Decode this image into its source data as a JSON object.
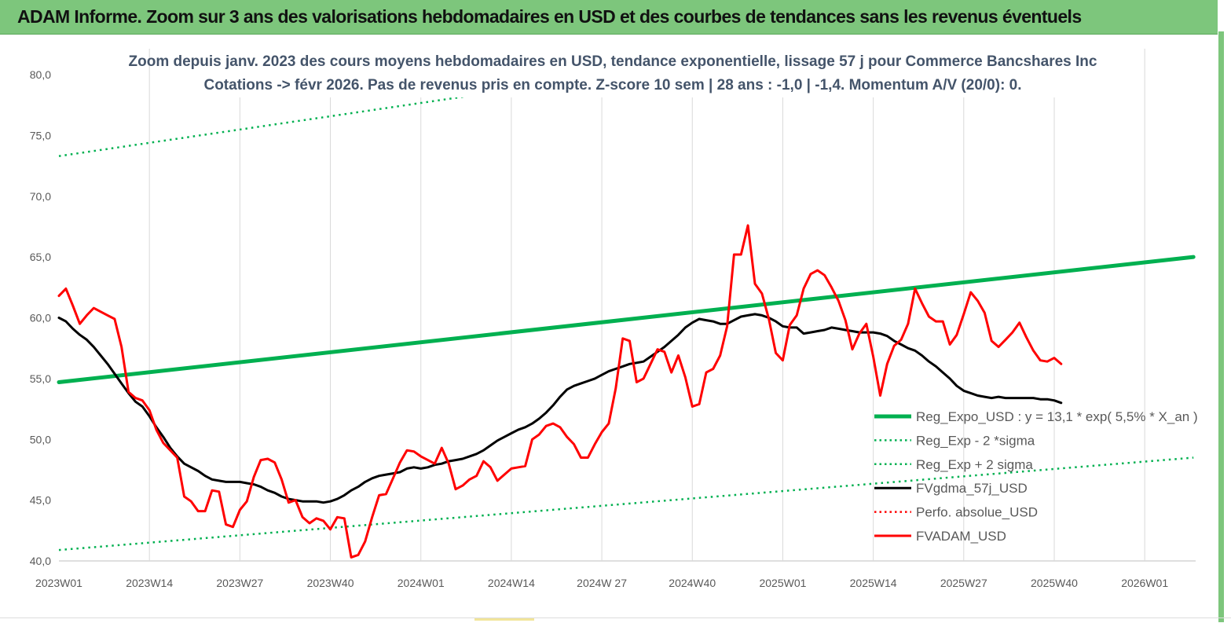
{
  "header": {
    "title": "ADAM Informe. Zoom sur 3 ans des valorisations hebdomadaires en USD et des courbes de tendances sans les revenus éventuels"
  },
  "colors": {
    "header_bg": "#7dc67c",
    "trend": "#00b050",
    "price": "#ff0000",
    "smooth": "#000000",
    "gridline": "#d9d9d9"
  },
  "chart_data": {
    "type": "line",
    "title": "Zoom depuis janv. 2023 des cours moyens hebdomadaires en USD, tendance exponentielle, lissage 57 j pour Commerce Bancshares Inc",
    "subtitle": "Cotations -> févr 2026.  Pas de revenus pris en compte. Z-score 10 sem  | 28 ans : -1,0 | -1,4. Momentum A/V (20/0): 0.",
    "ylim": [
      40,
      80
    ],
    "y_ticks": [
      "40,0",
      "45,0",
      "50,0",
      "55,0",
      "60,0",
      "65,0",
      "70,0",
      "75,0",
      "80,0"
    ],
    "x_ticks": [
      "2023W01",
      "2023W14",
      "2023W27",
      "2023W40",
      "2024W01",
      "2024W14",
      "2024W 27",
      "2024W40",
      "2025W01",
      "2025W14",
      "2025W27",
      "2025W40",
      "2026W01"
    ],
    "grid": "vertical",
    "legend_position": "right",
    "legend": [
      {
        "label": "Reg_Expo_USD : y = 13,1  * exp( 5,5% *  X_an )",
        "style": "solid-green-thick"
      },
      {
        "label": "Reg_Exp - 2 *sigma",
        "style": "dotted-green"
      },
      {
        "label": "Reg_Exp + 2 sigma",
        "style": "dotted-green"
      },
      {
        "label": "FVgdma_57j_USD",
        "style": "solid-black"
      },
      {
        "label": "Perfo. absolue_USD",
        "style": "dotted-red"
      },
      {
        "label": "FVADAM_USD",
        "style": "solid-red"
      }
    ],
    "series": [
      {
        "name": "Reg_Expo_USD : y = 13,1  * exp( 5,5% *  X_an )",
        "points": [
          [
            0,
            54.7
          ],
          [
            163,
            65.0
          ]
        ]
      },
      {
        "name": "Reg_Exp - 2 *sigma",
        "points": [
          [
            0,
            40.9
          ],
          [
            163,
            48.5
          ]
        ]
      },
      {
        "name": "Reg_Exp + 2 sigma",
        "points": [
          [
            0,
            73.3
          ],
          [
            163,
            87.0
          ]
        ]
      },
      {
        "name": "FVgdma_57j_USD",
        "points": [
          [
            0,
            60.0
          ],
          [
            1,
            59.7
          ],
          [
            2,
            59.1
          ],
          [
            3,
            58.6
          ],
          [
            4,
            58.2
          ],
          [
            5,
            57.6
          ],
          [
            6,
            56.9
          ],
          [
            7,
            56.2
          ],
          [
            8,
            55.4
          ],
          [
            9,
            54.6
          ],
          [
            10,
            53.8
          ],
          [
            11,
            53.1
          ],
          [
            12,
            52.7
          ],
          [
            13,
            51.9
          ],
          [
            14,
            51.0
          ],
          [
            15,
            50.2
          ],
          [
            16,
            49.3
          ],
          [
            17,
            48.6
          ],
          [
            18,
            48.0
          ],
          [
            19,
            47.7
          ],
          [
            20,
            47.4
          ],
          [
            21,
            47.0
          ],
          [
            22,
            46.7
          ],
          [
            23,
            46.6
          ],
          [
            24,
            46.5
          ],
          [
            25,
            46.5
          ],
          [
            26,
            46.5
          ],
          [
            27,
            46.4
          ],
          [
            28,
            46.3
          ],
          [
            29,
            46.1
          ],
          [
            30,
            45.8
          ],
          [
            31,
            45.6
          ],
          [
            32,
            45.3
          ],
          [
            33,
            45.1
          ],
          [
            34,
            45.0
          ],
          [
            35,
            44.9
          ],
          [
            36,
            44.9
          ],
          [
            37,
            44.9
          ],
          [
            38,
            44.8
          ],
          [
            39,
            44.9
          ],
          [
            40,
            45.1
          ],
          [
            41,
            45.4
          ],
          [
            42,
            45.8
          ],
          [
            43,
            46.1
          ],
          [
            44,
            46.5
          ],
          [
            45,
            46.8
          ],
          [
            46,
            47.0
          ],
          [
            47,
            47.1
          ],
          [
            48,
            47.2
          ],
          [
            49,
            47.3
          ],
          [
            50,
            47.6
          ],
          [
            51,
            47.7
          ],
          [
            52,
            47.6
          ],
          [
            53,
            47.7
          ],
          [
            54,
            47.9
          ],
          [
            55,
            48.0
          ],
          [
            56,
            48.2
          ],
          [
            57,
            48.3
          ],
          [
            58,
            48.4
          ],
          [
            59,
            48.6
          ],
          [
            60,
            48.8
          ],
          [
            61,
            49.1
          ],
          [
            62,
            49.5
          ],
          [
            63,
            49.9
          ],
          [
            64,
            50.2
          ],
          [
            65,
            50.5
          ],
          [
            66,
            50.8
          ],
          [
            67,
            51.0
          ],
          [
            68,
            51.3
          ],
          [
            69,
            51.7
          ],
          [
            70,
            52.2
          ],
          [
            71,
            52.8
          ],
          [
            72,
            53.5
          ],
          [
            73,
            54.1
          ],
          [
            74,
            54.4
          ],
          [
            75,
            54.6
          ],
          [
            76,
            54.8
          ],
          [
            77,
            55.0
          ],
          [
            78,
            55.3
          ],
          [
            79,
            55.6
          ],
          [
            80,
            55.8
          ],
          [
            81,
            56.0
          ],
          [
            82,
            56.2
          ],
          [
            83,
            56.3
          ],
          [
            84,
            56.4
          ],
          [
            85,
            56.8
          ],
          [
            86,
            57.2
          ],
          [
            87,
            57.6
          ],
          [
            88,
            58.1
          ],
          [
            89,
            58.6
          ],
          [
            90,
            59.2
          ],
          [
            91,
            59.6
          ],
          [
            92,
            59.9
          ],
          [
            93,
            59.8
          ],
          [
            94,
            59.7
          ],
          [
            95,
            59.5
          ],
          [
            96,
            59.5
          ],
          [
            97,
            59.8
          ],
          [
            98,
            60.1
          ],
          [
            99,
            60.2
          ],
          [
            100,
            60.3
          ],
          [
            101,
            60.2
          ],
          [
            102,
            60.0
          ],
          [
            103,
            59.7
          ],
          [
            104,
            59.3
          ],
          [
            105,
            59.2
          ],
          [
            106,
            59.2
          ],
          [
            107,
            58.7
          ],
          [
            108,
            58.8
          ],
          [
            109,
            58.9
          ],
          [
            110,
            59.0
          ],
          [
            111,
            59.2
          ],
          [
            112,
            59.1
          ],
          [
            113,
            59.0
          ],
          [
            114,
            58.9
          ],
          [
            115,
            58.8
          ],
          [
            116,
            58.8
          ],
          [
            117,
            58.8
          ],
          [
            118,
            58.7
          ],
          [
            119,
            58.5
          ],
          [
            120,
            58.1
          ],
          [
            121,
            57.8
          ],
          [
            122,
            57.5
          ],
          [
            123,
            57.3
          ],
          [
            124,
            56.9
          ],
          [
            125,
            56.4
          ],
          [
            126,
            56.0
          ],
          [
            127,
            55.5
          ],
          [
            128,
            55.0
          ],
          [
            129,
            54.4
          ],
          [
            130,
            54.0
          ],
          [
            131,
            53.8
          ],
          [
            132,
            53.6
          ],
          [
            133,
            53.5
          ],
          [
            134,
            53.4
          ],
          [
            135,
            53.5
          ],
          [
            136,
            53.4
          ],
          [
            137,
            53.4
          ],
          [
            138,
            53.4
          ],
          [
            139,
            53.4
          ],
          [
            140,
            53.4
          ],
          [
            141,
            53.3
          ],
          [
            142,
            53.3
          ],
          [
            143,
            53.2
          ],
          [
            144,
            53.0
          ]
        ]
      },
      {
        "name": "Perfo. absolue_USD",
        "points": []
      },
      {
        "name": "FVADAM_USD",
        "points": [
          [
            0,
            61.8
          ],
          [
            1,
            62.4
          ],
          [
            2,
            61.0
          ],
          [
            3,
            59.5
          ],
          [
            4,
            60.2
          ],
          [
            5,
            60.8
          ],
          [
            6,
            60.5
          ],
          [
            7,
            60.2
          ],
          [
            8,
            59.9
          ],
          [
            9,
            57.6
          ],
          [
            10,
            53.9
          ],
          [
            11,
            53.4
          ],
          [
            12,
            53.2
          ],
          [
            13,
            52.4
          ],
          [
            14,
            50.8
          ],
          [
            15,
            49.7
          ],
          [
            16,
            49.1
          ],
          [
            17,
            48.5
          ],
          [
            18,
            45.3
          ],
          [
            19,
            44.9
          ],
          [
            20,
            44.1
          ],
          [
            21,
            44.1
          ],
          [
            22,
            45.8
          ],
          [
            23,
            45.7
          ],
          [
            24,
            43.0
          ],
          [
            25,
            42.8
          ],
          [
            26,
            44.2
          ],
          [
            27,
            44.9
          ],
          [
            28,
            46.9
          ],
          [
            29,
            48.3
          ],
          [
            30,
            48.4
          ],
          [
            31,
            48.1
          ],
          [
            32,
            46.7
          ],
          [
            33,
            44.8
          ],
          [
            34,
            45.0
          ],
          [
            35,
            43.6
          ],
          [
            36,
            43.1
          ],
          [
            37,
            43.5
          ],
          [
            38,
            43.3
          ],
          [
            39,
            42.6
          ],
          [
            40,
            43.6
          ],
          [
            41,
            43.5
          ],
          [
            42,
            40.3
          ],
          [
            43,
            40.5
          ],
          [
            44,
            41.6
          ],
          [
            45,
            43.6
          ],
          [
            46,
            45.4
          ],
          [
            47,
            45.5
          ],
          [
            48,
            46.8
          ],
          [
            49,
            48.1
          ],
          [
            50,
            49.1
          ],
          [
            51,
            49.0
          ],
          [
            52,
            48.6
          ],
          [
            53,
            48.3
          ],
          [
            54,
            48.0
          ],
          [
            55,
            49.3
          ],
          [
            56,
            48.0
          ],
          [
            57,
            45.9
          ],
          [
            58,
            46.2
          ],
          [
            59,
            46.7
          ],
          [
            60,
            47.0
          ],
          [
            61,
            48.2
          ],
          [
            62,
            47.7
          ],
          [
            63,
            46.6
          ],
          [
            64,
            47.1
          ],
          [
            65,
            47.6
          ],
          [
            66,
            47.7
          ],
          [
            67,
            47.8
          ],
          [
            68,
            50.0
          ],
          [
            69,
            50.4
          ],
          [
            70,
            51.1
          ],
          [
            71,
            51.3
          ],
          [
            72,
            51.0
          ],
          [
            73,
            50.2
          ],
          [
            74,
            49.6
          ],
          [
            75,
            48.5
          ],
          [
            76,
            48.5
          ],
          [
            77,
            49.6
          ],
          [
            78,
            50.6
          ],
          [
            79,
            51.3
          ],
          [
            80,
            54.2
          ],
          [
            81,
            58.3
          ],
          [
            82,
            58.1
          ],
          [
            83,
            54.7
          ],
          [
            84,
            55.0
          ],
          [
            85,
            56.2
          ],
          [
            86,
            57.4
          ],
          [
            87,
            57.2
          ],
          [
            88,
            55.5
          ],
          [
            89,
            56.9
          ],
          [
            90,
            55.1
          ],
          [
            91,
            52.7
          ],
          [
            92,
            52.9
          ],
          [
            93,
            55.5
          ],
          [
            94,
            55.8
          ],
          [
            95,
            56.9
          ],
          [
            96,
            59.3
          ],
          [
            97,
            65.2
          ],
          [
            98,
            65.2
          ],
          [
            99,
            67.6
          ],
          [
            100,
            62.8
          ],
          [
            101,
            62.0
          ],
          [
            102,
            59.9
          ],
          [
            103,
            57.1
          ],
          [
            104,
            56.5
          ],
          [
            105,
            59.4
          ],
          [
            106,
            60.2
          ],
          [
            107,
            62.4
          ],
          [
            108,
            63.6
          ],
          [
            109,
            63.9
          ],
          [
            110,
            63.5
          ],
          [
            111,
            62.5
          ],
          [
            112,
            61.4
          ],
          [
            113,
            59.8
          ],
          [
            114,
            57.4
          ],
          [
            115,
            58.7
          ],
          [
            116,
            59.5
          ],
          [
            117,
            56.8
          ],
          [
            118,
            53.6
          ],
          [
            119,
            56.2
          ],
          [
            120,
            57.7
          ],
          [
            121,
            58.2
          ],
          [
            122,
            59.5
          ],
          [
            123,
            62.4
          ],
          [
            124,
            61.2
          ],
          [
            125,
            60.1
          ],
          [
            126,
            59.7
          ],
          [
            127,
            59.7
          ],
          [
            128,
            57.8
          ],
          [
            129,
            58.6
          ],
          [
            130,
            60.3
          ],
          [
            131,
            62.1
          ],
          [
            132,
            61.4
          ],
          [
            133,
            60.4
          ],
          [
            134,
            58.1
          ],
          [
            135,
            57.6
          ],
          [
            136,
            58.2
          ],
          [
            137,
            58.8
          ],
          [
            138,
            59.6
          ],
          [
            139,
            58.4
          ],
          [
            140,
            57.3
          ],
          [
            141,
            56.5
          ],
          [
            142,
            56.4
          ],
          [
            143,
            56.7
          ],
          [
            144,
            56.2
          ]
        ]
      }
    ]
  }
}
